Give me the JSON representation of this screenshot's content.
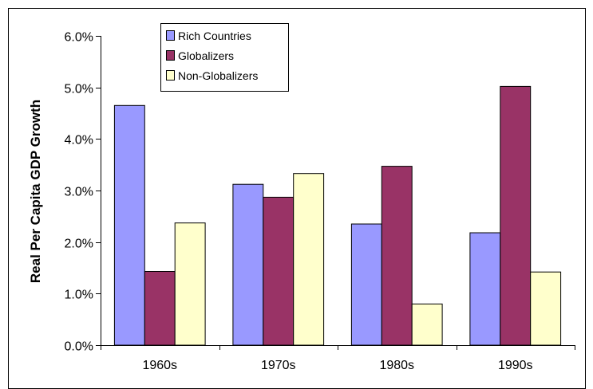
{
  "chart_data": {
    "type": "bar",
    "ylabel": "Real Per Capita GDP Growth",
    "xlabel": "",
    "ylim": [
      0,
      6
    ],
    "yticks": [
      "0.0%",
      "1.0%",
      "2.0%",
      "3.0%",
      "4.0%",
      "5.0%",
      "6.0%"
    ],
    "y_tick_values": [
      0,
      1,
      2,
      3,
      4,
      5,
      6
    ],
    "categories": [
      "1960s",
      "1970s",
      "1980s",
      "1990s"
    ],
    "series": [
      {
        "name": "Rich Countries",
        "color": "#9999ff",
        "values": [
          4.65,
          3.12,
          2.35,
          2.18
        ]
      },
      {
        "name": "Globalizers",
        "color": "#993366",
        "values": [
          1.43,
          2.87,
          3.47,
          5.02
        ]
      },
      {
        "name": "Non-Globalizers",
        "color": "#ffffcc",
        "values": [
          2.37,
          3.33,
          0.8,
          1.42
        ]
      }
    ],
    "legend_position": "top-left-inside",
    "grid": false
  }
}
